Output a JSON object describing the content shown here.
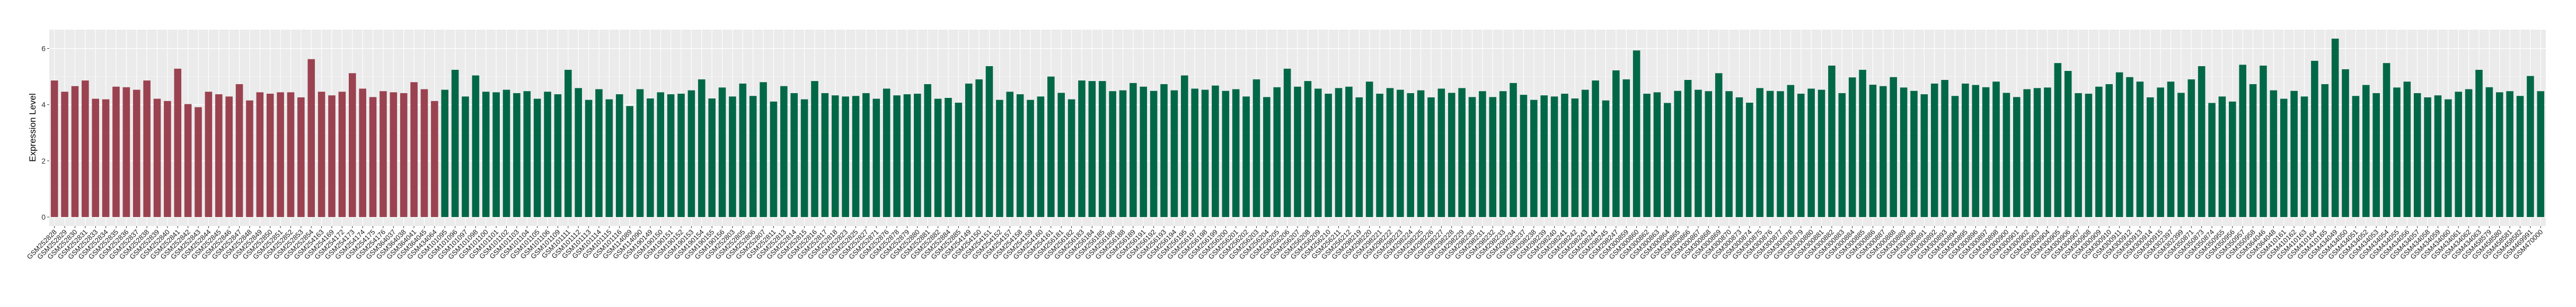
{
  "chart_data": {
    "type": "bar",
    "title": "",
    "xlabel": "",
    "ylabel": "Expression Level",
    "ylim": [
      -0.32,
      6.67
    ],
    "yticks": [
      0,
      2,
      4,
      6
    ],
    "grid": true,
    "legend": "none",
    "panel_background": "#ebebeb",
    "series": [
      {
        "color": "#9b4250",
        "categories": [
          "GSM252828",
          "GSM252829",
          "GSM252830",
          "GSM252831",
          "GSM252833",
          "GSM252834",
          "GSM252835",
          "GSM252836",
          "GSM252837",
          "GSM252838",
          "GSM252839",
          "GSM252840",
          "GSM252841",
          "GSM252842",
          "GSM252843",
          "GSM252844",
          "GSM252845",
          "GSM252846",
          "GSM252847",
          "GSM252848",
          "GSM252849",
          "GSM252850",
          "GSM252851",
          "GSM252852",
          "GSM252853",
          "GSM252854",
          "GSM254163",
          "GSM254169",
          "GSM254172",
          "GSM254173",
          "GSM254174",
          "GSM254175",
          "GSM254176",
          "GSM364037",
          "GSM364038",
          "GSM364041",
          "GSM364045",
          "GSM434064"
        ],
        "values": [
          4.86,
          4.46,
          4.66,
          4.86,
          4.21,
          4.19,
          4.64,
          4.62,
          4.53,
          4.86,
          4.21,
          4.13,
          5.28,
          4.02,
          3.91,
          4.46,
          4.37,
          4.29,
          4.73,
          4.15,
          4.44,
          4.39,
          4.44,
          4.44,
          4.26,
          5.62,
          4.46,
          4.33,
          4.46,
          5.12,
          4.57,
          4.27,
          4.48,
          4.44,
          4.41,
          4.8,
          4.55,
          4.13
        ]
      },
      {
        "color": "#016847",
        "categories": [
          "GSM101095",
          "GSM101096",
          "GSM101097",
          "GSM101098",
          "GSM101100",
          "GSM101101",
          "GSM101102",
          "GSM101103",
          "GSM101104",
          "GSM101105",
          "GSM101106",
          "GSM101109",
          "GSM101111",
          "GSM101112",
          "GSM101113",
          "GSM101114",
          "GSM101115",
          "GSM101116",
          "GSM114089",
          "GSM114090",
          "GSM190149",
          "GSM190150",
          "GSM190151",
          "GSM190152",
          "GSM190153",
          "GSM190154",
          "GSM190155",
          "GSM190156",
          "GSM252803",
          "GSM252805",
          "GSM252806",
          "GSM252807",
          "GSM252811",
          "GSM252813",
          "GSM252814",
          "GSM252815",
          "GSM252816",
          "GSM252817",
          "GSM252818",
          "GSM252823",
          "GSM252825",
          "GSM252827",
          "GSM252871",
          "GSM252876",
          "GSM252878",
          "GSM252879",
          "GSM252880",
          "GSM252881",
          "GSM252882",
          "GSM252884",
          "GSM252885",
          "GSM254149",
          "GSM254150",
          "GSM254151",
          "GSM254152",
          "GSM254157",
          "GSM254158",
          "GSM254159",
          "GSM254160",
          "GSM254161",
          "GSM256181",
          "GSM256182",
          "GSM256183",
          "GSM256184",
          "GSM256185",
          "GSM256186",
          "GSM256188",
          "GSM256189",
          "GSM256191",
          "GSM256192",
          "GSM256193",
          "GSM256194",
          "GSM256195",
          "GSM256197",
          "GSM256198",
          "GSM256199",
          "GSM256200",
          "GSM256201",
          "GSM256202",
          "GSM256203",
          "GSM256204",
          "GSM256205",
          "GSM256206",
          "GSM256207",
          "GSM256208",
          "GSM256209",
          "GSM256210",
          "GSM256211",
          "GSM256212",
          "GSM298219",
          "GSM298220",
          "GSM298221",
          "GSM298222",
          "GSM298223",
          "GSM298224",
          "GSM298225",
          "GSM298226",
          "GSM298227",
          "GSM298228",
          "GSM298229",
          "GSM298230",
          "GSM298231",
          "GSM298232",
          "GSM298233",
          "GSM298234",
          "GSM298237",
          "GSM298238",
          "GSM298239",
          "GSM298240",
          "GSM298241",
          "GSM298242",
          "GSM298243",
          "GSM298244",
          "GSM298245",
          "GSM298247",
          "GSM300859",
          "GSM300860",
          "GSM300862",
          "GSM300863",
          "GSM300864",
          "GSM300865",
          "GSM300866",
          "GSM300867",
          "GSM300868",
          "GSM300869",
          "GSM300870",
          "GSM300873",
          "GSM300874",
          "GSM300875",
          "GSM300876",
          "GSM300877",
          "GSM300878",
          "GSM300879",
          "GSM300880",
          "GSM300881",
          "GSM300882",
          "GSM300883",
          "GSM300884",
          "GSM300885",
          "GSM300886",
          "GSM300887",
          "GSM300888",
          "GSM300889",
          "GSM300890",
          "GSM300891",
          "GSM300892",
          "GSM300893",
          "GSM300894",
          "GSM300895",
          "GSM300896",
          "GSM300897",
          "GSM300898",
          "GSM300900",
          "GSM300901",
          "GSM300902",
          "GSM300903",
          "GSM300904",
          "GSM300905",
          "GSM300906",
          "GSM300907",
          "GSM300908",
          "GSM300909",
          "GSM300910",
          "GSM300911",
          "GSM300912",
          "GSM300913",
          "GSM300914",
          "GSM300915",
          "GSM302397",
          "GSM302399",
          "GSM350871",
          "GSM350873",
          "GSM350874",
          "GSM350955",
          "GSM350956",
          "GSM350957",
          "GSM350958",
          "GSM364046",
          "GSM364048",
          "GSM410161",
          "GSM410162",
          "GSM410163",
          "GSM410164",
          "GSM410165",
          "GSM434049",
          "GSM434050",
          "GSM434051",
          "GSM434052",
          "GSM434053",
          "GSM434054",
          "GSM434055",
          "GSM434056",
          "GSM434057",
          "GSM434058",
          "GSM434059",
          "GSM434060",
          "GSM434061",
          "GSM434062",
          "GSM434063",
          "GSM458579",
          "GSM458580",
          "GSM458581",
          "GSM458582",
          "GSM469991",
          "GSM470000"
        ],
        "values": [
          4.53,
          5.24,
          4.29,
          5.04,
          4.46,
          4.44,
          4.53,
          4.41,
          4.48,
          4.21,
          4.46,
          4.37,
          5.24,
          4.59,
          4.17,
          4.55,
          4.19,
          4.37,
          3.95,
          4.55,
          4.22,
          4.44,
          4.37,
          4.39,
          4.51,
          4.9,
          4.22,
          4.61,
          4.29,
          4.75,
          4.31,
          4.8,
          4.11,
          4.66,
          4.41,
          4.19,
          4.84,
          4.41,
          4.33,
          4.29,
          4.31,
          4.41,
          4.21,
          4.57,
          4.33,
          4.37,
          4.39,
          4.73,
          4.21,
          4.24,
          4.07,
          4.75,
          4.9,
          5.37,
          4.17,
          4.46,
          4.37,
          4.17,
          4.29,
          5.0,
          4.42,
          4.19,
          4.86,
          4.84,
          4.84,
          4.48,
          4.51,
          4.77,
          4.64,
          4.49,
          4.73,
          4.51,
          5.04,
          4.57,
          4.53,
          4.68,
          4.49,
          4.55,
          4.29,
          4.9,
          4.27,
          4.62,
          5.28,
          4.64,
          4.84,
          4.57,
          4.39,
          4.59,
          4.64,
          4.26,
          4.82,
          4.39,
          4.59,
          4.53,
          4.41,
          4.51,
          4.26,
          4.57,
          4.42,
          4.59,
          4.27,
          4.48,
          4.27,
          4.48,
          4.77,
          4.35,
          4.17,
          4.33,
          4.29,
          4.39,
          4.22,
          4.53,
          4.86,
          4.15,
          5.22,
          4.9,
          5.93,
          4.39,
          4.44,
          4.06,
          4.49,
          4.88,
          4.53,
          4.48,
          5.12,
          4.48,
          4.26,
          4.07,
          4.59,
          4.49,
          4.48,
          4.7,
          4.39,
          4.57,
          4.53,
          5.39,
          4.41,
          4.97,
          5.24,
          4.71,
          4.66,
          4.98,
          4.61,
          4.49,
          4.37,
          4.75,
          4.88,
          4.31,
          4.75,
          4.7,
          4.62,
          4.82,
          4.42,
          4.27,
          4.55,
          4.59,
          4.61,
          5.48,
          5.2,
          4.41,
          4.39,
          4.64,
          4.73,
          5.15,
          4.98,
          4.82,
          4.26,
          4.61,
          4.82,
          4.42,
          4.9,
          5.37,
          4.06,
          4.29,
          4.11,
          5.42,
          4.73,
          5.39,
          4.51,
          4.21,
          4.49,
          4.29,
          5.56,
          4.73,
          6.35,
          5.26,
          4.31,
          4.7,
          4.41,
          5.48,
          4.61,
          4.82,
          4.41,
          4.26,
          4.33,
          4.19,
          4.46,
          4.55,
          5.24,
          4.62,
          4.44,
          4.48,
          4.31,
          5.02,
          4.48
        ]
      }
    ]
  }
}
